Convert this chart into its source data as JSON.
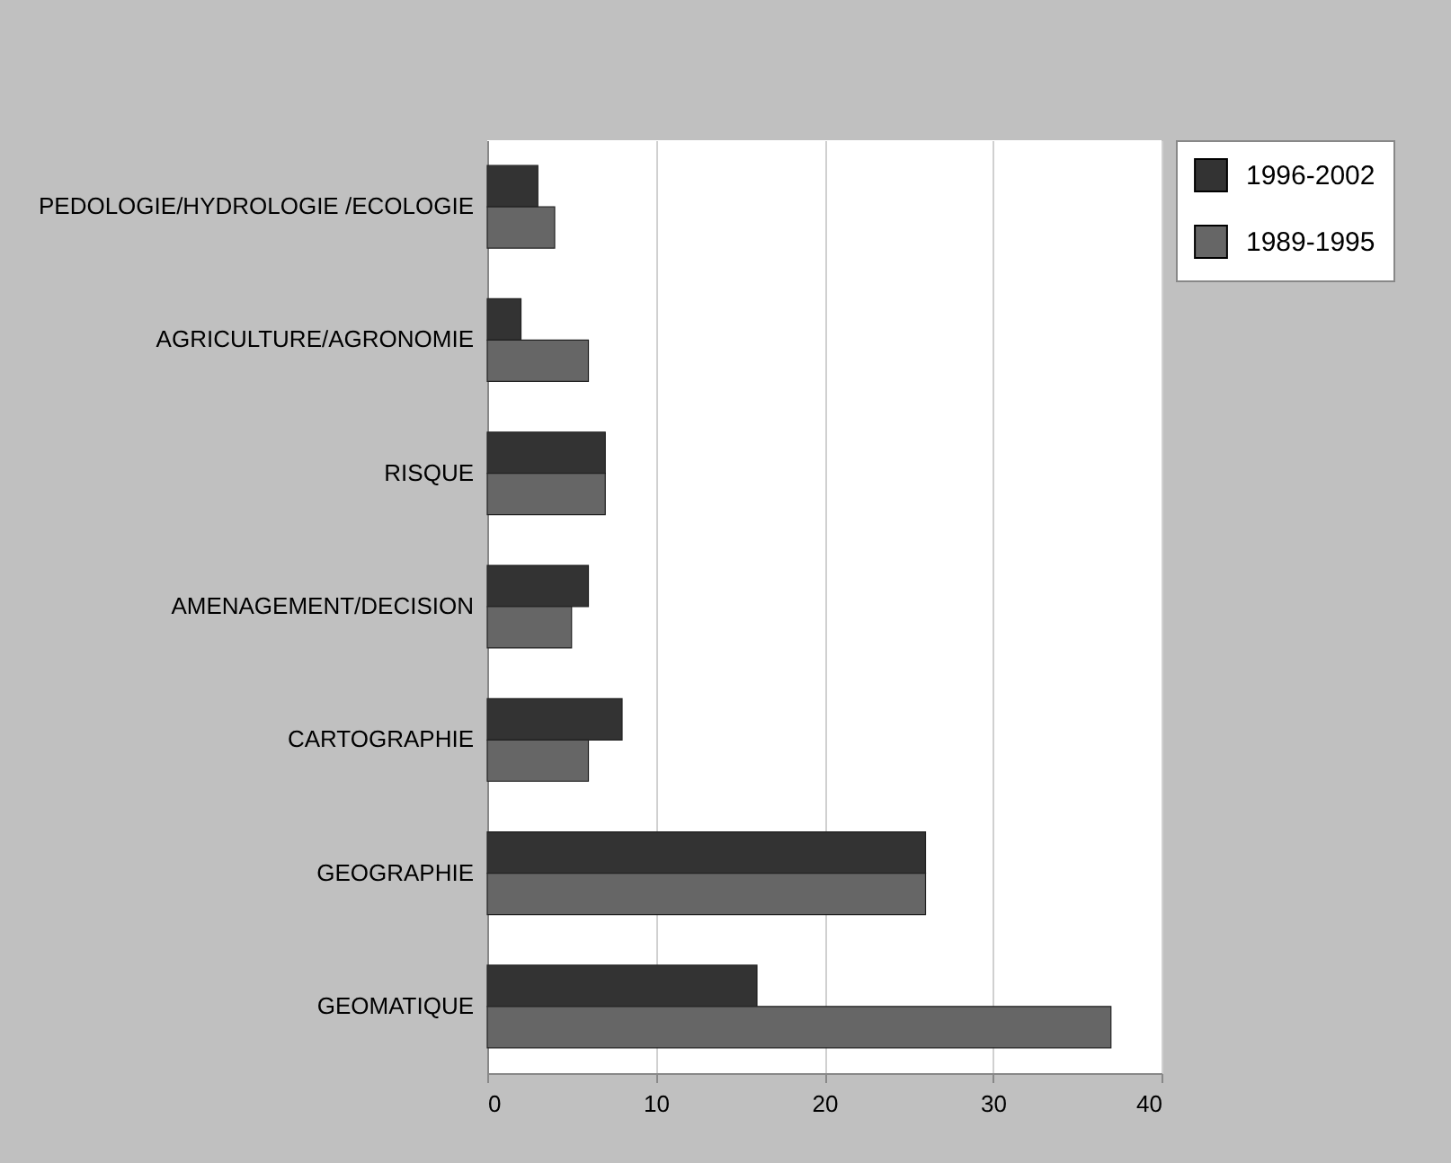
{
  "chart_data": {
    "type": "bar",
    "orientation": "horizontal",
    "categories": [
      "PEDOLOGIE/HYDROLOGIE /ECOLOGIE",
      "AGRICULTURE/AGRONOMIE",
      "RISQUE",
      "AMENAGEMENT/DECISION",
      "CARTOGRAPHIE",
      "GEOGRAPHIE",
      "GEOMATIQUE"
    ],
    "series": [
      {
        "name": "1996-2002",
        "color": "#333333",
        "values": [
          3,
          2,
          7,
          6,
          8,
          26,
          16
        ]
      },
      {
        "name": "1989-1995",
        "color": "#666666",
        "values": [
          4,
          6,
          7,
          5,
          6,
          26,
          37
        ]
      }
    ],
    "xlim": [
      0,
      40
    ],
    "xticks": [
      0,
      10,
      20,
      30,
      40
    ],
    "grid": "x",
    "legend": "top right"
  }
}
